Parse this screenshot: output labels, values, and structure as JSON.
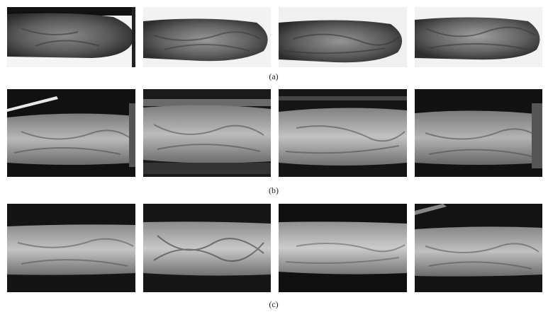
{
  "figure": {
    "rows": [
      {
        "caption": "(a)",
        "style": "white-background",
        "images": [
          {
            "kind": "finger-vein-image"
          },
          {
            "kind": "finger-vein-image"
          },
          {
            "kind": "finger-vein-image"
          },
          {
            "kind": "finger-vein-image"
          }
        ]
      },
      {
        "caption": "(b)",
        "style": "dark-clamp",
        "images": [
          {
            "kind": "finger-vein-image"
          },
          {
            "kind": "finger-vein-image"
          },
          {
            "kind": "finger-vein-image"
          },
          {
            "kind": "finger-vein-image"
          }
        ]
      },
      {
        "caption": "(c)",
        "style": "dark-background",
        "images": [
          {
            "kind": "finger-vein-image"
          },
          {
            "kind": "finger-vein-image"
          },
          {
            "kind": "finger-vein-image"
          },
          {
            "kind": "finger-vein-image"
          }
        ]
      }
    ],
    "colors": {
      "background": "#ffffff",
      "finger_light": "#d8d8d8",
      "finger_dark": "#4a4a4a",
      "vein": "#3a3a3a",
      "dark_bg": "#111111"
    }
  }
}
